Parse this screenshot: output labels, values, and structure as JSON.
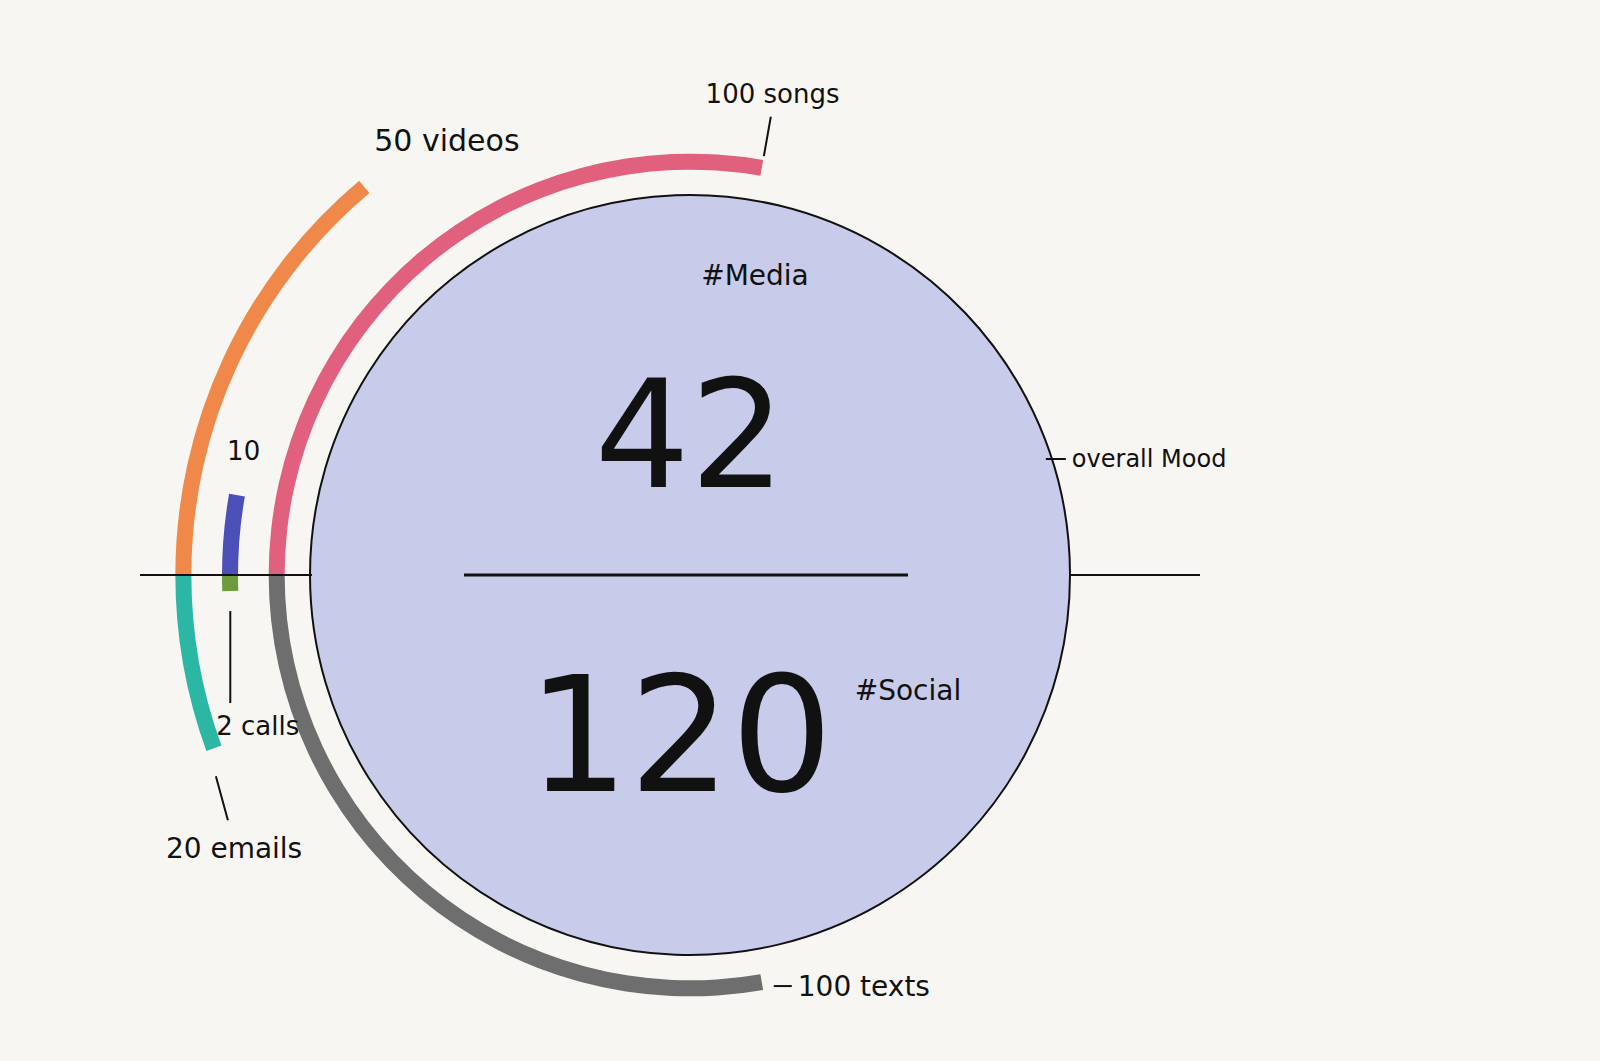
{
  "chart_data": {
    "type": "radial_bar",
    "annotation": "overall Mood",
    "color": "#c8cbea",
    "tick_labels": false,
    "groups": [
      {
        "label": "#Media",
        "total": 42,
        "arcs": [
          {
            "label": "100 songs",
            "value": 100,
            "color": "#e0607e"
          },
          {
            "label": "10",
            "value": 10,
            "color": "#4b4fb8"
          },
          {
            "label": "50 videos",
            "value": 50,
            "color": "#f0884a"
          }
        ]
      },
      {
        "label": "#Social",
        "total": 120,
        "arcs": [
          {
            "label": "100 texts",
            "value": 100,
            "color": "#6e6e6e"
          },
          {
            "label": "2 calls",
            "value": 2,
            "color": "#6e9b3c"
          },
          {
            "label": "20 emails",
            "value": 20,
            "color": "#2bb7a3"
          }
        ]
      }
    ]
  }
}
